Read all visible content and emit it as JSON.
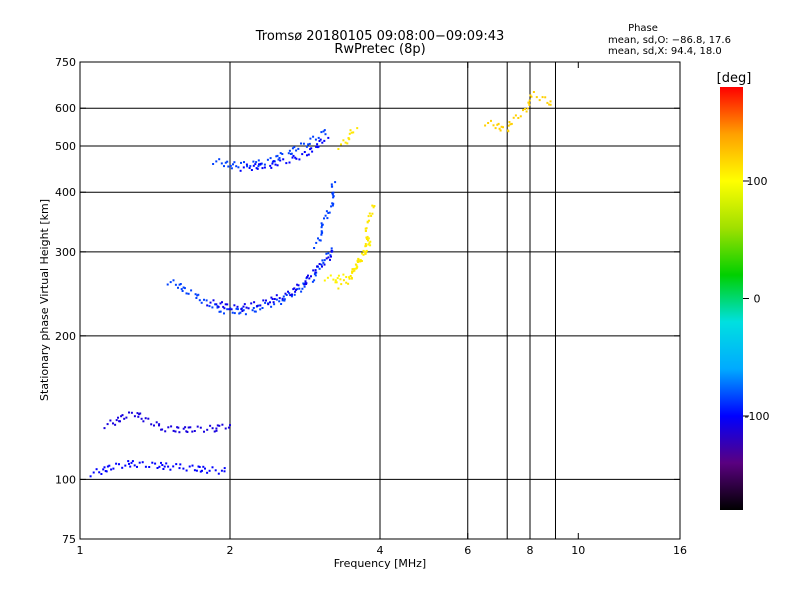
{
  "chart_data": {
    "type": "scatter",
    "title": "Tromsø 20180105 09:08:00−09:09:43",
    "subtitle": "RwPretec (8p)",
    "xlabel": "Frequency [MHz]",
    "ylabel": "Stationary phase Virtual Height [km]",
    "x_scale": "log",
    "y_scale": "log",
    "xlim": [
      1,
      16
    ],
    "ylim": [
      75,
      750
    ],
    "x_ticks": [
      1,
      2,
      4,
      6,
      8,
      10,
      16
    ],
    "y_ticks": [
      75,
      100,
      200,
      300,
      400,
      500,
      600,
      750
    ],
    "grid_x": [
      2,
      4,
      6,
      7.2,
      8,
      9
    ],
    "grid_y": [
      100,
      200,
      300,
      400,
      500,
      600
    ],
    "phase_stats": {
      "heading": "Phase",
      "o_line": "mean, sd,O: −86.8, 17.6",
      "x_line": "mean, sd,X:  94.4, 18.0"
    },
    "colorbar": {
      "label": "[deg]",
      "range": [
        -180,
        180
      ],
      "ticks": [
        100,
        0,
        -100
      ],
      "colors": [
        "#000000",
        "#5a0080",
        "#0000ff",
        "#00aaff",
        "#00e0e0",
        "#00d000",
        "#a0e000",
        "#ffff00",
        "#ffa000",
        "#ff0000"
      ]
    },
    "series": [
      {
        "name": "",
        "segments": [
          {
            "x": [
              1.05,
              1.25,
              1.6,
              1.95
            ],
            "y": [
              103,
              108,
              106,
              104
            ],
            "phase": -100
          },
          {
            "x": [
              1.12,
              1.3,
              1.45,
              1.6,
              1.9,
              2.0
            ],
            "y": [
              130,
              138,
              128,
              127,
              128,
              130
            ],
            "phase": -110
          },
          {
            "x": [
              1.5,
              1.7,
              1.9,
              2.2,
              2.6,
              2.9,
              3.1,
              3.2
            ],
            "y": [
              260,
              245,
              226,
              225,
              240,
              262,
              285,
              305
            ],
            "phase": -85
          },
          {
            "x": [
              1.8,
              2.1,
              2.5,
              2.8,
              3.0,
              3.2
            ],
            "y": [
              235,
              228,
              240,
              255,
              275,
              300
            ],
            "phase": -105
          },
          {
            "x": [
              1.85,
              2.0,
              2.3,
              2.6,
              2.9,
              3.1
            ],
            "y": [
              465,
              455,
              460,
              480,
              510,
              540
            ],
            "phase": -85
          },
          {
            "x": [
              2.1,
              2.4,
              2.7,
              2.95,
              3.15
            ],
            "y": [
              450,
              455,
              470,
              495,
              520
            ],
            "phase": -100
          },
          {
            "x": [
              2.95,
              3.05,
              3.15,
              3.2,
              3.25
            ],
            "y": [
              310,
              330,
              360,
              390,
              420
            ],
            "phase": -85
          },
          {
            "x": [
              3.1,
              3.25,
              3.4,
              3.55,
              3.7,
              3.8
            ],
            "y": [
              265,
              262,
              265,
              275,
              292,
              320
            ],
            "phase": 105
          },
          {
            "x": [
              3.3,
              3.5,
              3.65,
              3.75,
              3.82,
              3.86
            ],
            "y": [
              255,
              265,
              285,
              315,
              350,
              375
            ],
            "phase": 110
          },
          {
            "x": [
              3.3,
              3.45,
              3.6
            ],
            "y": [
              500,
              520,
              545
            ],
            "phase": 110
          },
          {
            "x": [
              6.5,
              7.2,
              8.2,
              8.8
            ],
            "y": [
              560,
              540,
              640,
              610
            ],
            "phase": 120
          }
        ]
      }
    ]
  }
}
